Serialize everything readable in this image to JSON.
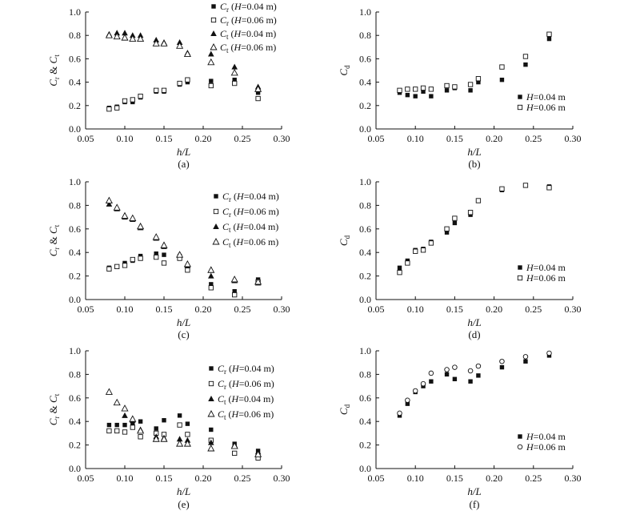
{
  "chart_data": [
    {
      "type": "scatter",
      "panel_label": "(a)",
      "xlabel": "h/L",
      "ylabel": "Cr & Ct",
      "xlim": [
        0.05,
        0.3
      ],
      "ylim": [
        0.0,
        1.0
      ],
      "xticks": [
        "0.05",
        "0.10",
        "0.15",
        "0.20",
        "0.25",
        "0.30"
      ],
      "yticks": [
        "0.0",
        "0.2",
        "0.4",
        "0.6",
        "0.8",
        "1.0"
      ],
      "grid": false,
      "legend_position": "top-right",
      "series": [
        {
          "name": "Cr (H=0.04 m)",
          "marker": "square-filled",
          "x": [
            0.08,
            0.09,
            0.1,
            0.11,
            0.12,
            0.14,
            0.15,
            0.17,
            0.18,
            0.21,
            0.24,
            0.27
          ],
          "y": [
            0.18,
            0.19,
            0.23,
            0.23,
            0.27,
            0.32,
            0.32,
            0.38,
            0.4,
            0.41,
            0.42,
            0.31
          ]
        },
        {
          "name": "Cr (H=0.06 m)",
          "marker": "square-open",
          "x": [
            0.08,
            0.09,
            0.1,
            0.11,
            0.12,
            0.14,
            0.15,
            0.17,
            0.18,
            0.21,
            0.24,
            0.27
          ],
          "y": [
            0.17,
            0.18,
            0.24,
            0.25,
            0.28,
            0.33,
            0.33,
            0.39,
            0.42,
            0.37,
            0.39,
            0.26
          ]
        },
        {
          "name": "Ct (H=0.04 m)",
          "marker": "triangle-filled",
          "x": [
            0.08,
            0.09,
            0.1,
            0.11,
            0.12,
            0.14,
            0.15,
            0.17,
            0.18,
            0.21,
            0.24,
            0.27
          ],
          "y": [
            0.81,
            0.82,
            0.82,
            0.8,
            0.8,
            0.76,
            0.74,
            0.74,
            0.65,
            0.64,
            0.53,
            0.36
          ]
        },
        {
          "name": "Ct (H=0.06 m)",
          "marker": "triangle-open",
          "x": [
            0.08,
            0.09,
            0.1,
            0.11,
            0.12,
            0.14,
            0.15,
            0.17,
            0.18,
            0.21,
            0.24,
            0.27
          ],
          "y": [
            0.8,
            0.79,
            0.78,
            0.77,
            0.77,
            0.73,
            0.73,
            0.71,
            0.64,
            0.57,
            0.48,
            0.34
          ]
        }
      ]
    },
    {
      "type": "scatter",
      "panel_label": "(b)",
      "xlabel": "h/L",
      "ylabel": "Cd",
      "xlim": [
        0.05,
        0.3
      ],
      "ylim": [
        0.0,
        1.0
      ],
      "xticks": [
        "0.05",
        "0.10",
        "0.15",
        "0.20",
        "0.25",
        "0.30"
      ],
      "yticks": [
        "0.0",
        "0.2",
        "0.4",
        "0.6",
        "0.8",
        "1.0"
      ],
      "grid": false,
      "legend_position": "bottom-right",
      "series": [
        {
          "name": "H=0.04 m",
          "marker": "square-filled",
          "x": [
            0.08,
            0.09,
            0.1,
            0.11,
            0.12,
            0.14,
            0.15,
            0.17,
            0.18,
            0.21,
            0.24,
            0.27
          ],
          "y": [
            0.31,
            0.29,
            0.28,
            0.32,
            0.28,
            0.33,
            0.35,
            0.33,
            0.4,
            0.42,
            0.55,
            0.77
          ]
        },
        {
          "name": "H=0.06 m",
          "marker": "square-open",
          "x": [
            0.08,
            0.09,
            0.1,
            0.11,
            0.12,
            0.14,
            0.15,
            0.17,
            0.18,
            0.21,
            0.24,
            0.27
          ],
          "y": [
            0.33,
            0.34,
            0.34,
            0.35,
            0.34,
            0.37,
            0.36,
            0.38,
            0.43,
            0.53,
            0.62,
            0.81
          ]
        }
      ]
    },
    {
      "type": "scatter",
      "panel_label": "(c)",
      "xlabel": "h/L",
      "ylabel": "Cr & Ct",
      "xlim": [
        0.05,
        0.3
      ],
      "ylim": [
        0.0,
        1.0
      ],
      "xticks": [
        "0.05",
        "0.10",
        "0.15",
        "0.20",
        "0.25",
        "0.30"
      ],
      "yticks": [
        "0.0",
        "0.2",
        "0.4",
        "0.6",
        "0.8",
        "1.0"
      ],
      "grid": false,
      "legend_position": "top-right",
      "series": [
        {
          "name": "Cr (H=0.04 m)",
          "marker": "square-filled",
          "x": [
            0.08,
            0.09,
            0.1,
            0.11,
            0.12,
            0.14,
            0.15,
            0.17,
            0.18,
            0.21,
            0.24,
            0.27
          ],
          "y": [
            0.27,
            0.28,
            0.31,
            0.33,
            0.37,
            0.39,
            0.38,
            0.37,
            0.26,
            0.13,
            0.07,
            0.17
          ]
        },
        {
          "name": "Cr (H=0.06 m)",
          "marker": "square-open",
          "x": [
            0.08,
            0.09,
            0.1,
            0.11,
            0.12,
            0.14,
            0.15,
            0.17,
            0.18,
            0.21,
            0.24,
            0.27
          ],
          "y": [
            0.26,
            0.28,
            0.29,
            0.34,
            0.35,
            0.36,
            0.31,
            0.35,
            0.25,
            0.1,
            0.04,
            0.15
          ]
        },
        {
          "name": "Ct (H=0.04 m)",
          "marker": "triangle-filled",
          "x": [
            0.08,
            0.09,
            0.1,
            0.11,
            0.12,
            0.14,
            0.15,
            0.17,
            0.18,
            0.21,
            0.24,
            0.27
          ],
          "y": [
            0.81,
            0.77,
            0.7,
            0.68,
            0.61,
            0.52,
            0.45,
            0.38,
            0.29,
            0.2,
            0.16,
            0.14
          ]
        },
        {
          "name": "Ct (H=0.06 m)",
          "marker": "triangle-open",
          "x": [
            0.08,
            0.09,
            0.1,
            0.11,
            0.12,
            0.14,
            0.15,
            0.17,
            0.18,
            0.21,
            0.24,
            0.27
          ],
          "y": [
            0.84,
            0.78,
            0.71,
            0.69,
            0.62,
            0.53,
            0.46,
            0.38,
            0.3,
            0.25,
            0.17,
            0.15
          ]
        }
      ]
    },
    {
      "type": "scatter",
      "panel_label": "(d)",
      "xlabel": "h/L",
      "ylabel": "Cd",
      "xlim": [
        0.05,
        0.3
      ],
      "ylim": [
        0.0,
        1.0
      ],
      "xticks": [
        "0.05",
        "0.10",
        "0.15",
        "0.20",
        "0.25",
        "0.30"
      ],
      "yticks": [
        "0.0",
        "0.2",
        "0.4",
        "0.6",
        "0.8",
        "1.0"
      ],
      "grid": false,
      "legend_position": "bottom-right",
      "series": [
        {
          "name": "H=0.04 m",
          "marker": "square-filled",
          "x": [
            0.08,
            0.09,
            0.1,
            0.11,
            0.12,
            0.14,
            0.15,
            0.17,
            0.18,
            0.21,
            0.24,
            0.27
          ],
          "y": [
            0.27,
            0.33,
            0.42,
            0.43,
            0.49,
            0.57,
            0.65,
            0.72,
            0.84,
            0.93,
            0.97,
            0.96
          ]
        },
        {
          "name": "H=0.06 m",
          "marker": "square-open",
          "x": [
            0.08,
            0.09,
            0.1,
            0.11,
            0.12,
            0.14,
            0.15,
            0.17,
            0.18,
            0.21,
            0.24,
            0.27
          ],
          "y": [
            0.23,
            0.31,
            0.41,
            0.42,
            0.48,
            0.6,
            0.69,
            0.74,
            0.84,
            0.94,
            0.97,
            0.95
          ]
        }
      ]
    },
    {
      "type": "scatter",
      "panel_label": "(e)",
      "xlabel": "h/L",
      "ylabel": "Cr & Ct",
      "xlim": [
        0.05,
        0.3
      ],
      "ylim": [
        0.0,
        1.0
      ],
      "xticks": [
        "0.05",
        "0.10",
        "0.15",
        "0.20",
        "0.25",
        "0.30"
      ],
      "yticks": [
        "0.0",
        "0.2",
        "0.4",
        "0.6",
        "0.8",
        "1.0"
      ],
      "grid": false,
      "legend_position": "top-right",
      "series": [
        {
          "name": "Cr (H=0.04 m)",
          "marker": "square-filled",
          "x": [
            0.08,
            0.09,
            0.1,
            0.11,
            0.12,
            0.14,
            0.15,
            0.17,
            0.18,
            0.21,
            0.24,
            0.27
          ],
          "y": [
            0.37,
            0.37,
            0.37,
            0.38,
            0.4,
            0.34,
            0.41,
            0.45,
            0.38,
            0.33,
            0.21,
            0.15
          ]
        },
        {
          "name": "Cr (H=0.06 m)",
          "marker": "square-open",
          "x": [
            0.08,
            0.09,
            0.1,
            0.11,
            0.12,
            0.14,
            0.15,
            0.17,
            0.18,
            0.21,
            0.24,
            0.27
          ],
          "y": [
            0.32,
            0.32,
            0.31,
            0.35,
            0.27,
            0.3,
            0.29,
            0.37,
            0.29,
            0.24,
            0.13,
            0.09
          ]
        },
        {
          "name": "Ct (H=0.04 m)",
          "marker": "triangle-filled",
          "x": [
            0.08,
            0.09,
            0.1,
            0.11,
            0.12,
            0.14,
            0.15,
            0.17,
            0.18,
            0.21,
            0.24,
            0.27
          ],
          "y": [
            0.65,
            0.56,
            0.45,
            0.41,
            0.33,
            0.27,
            0.26,
            0.25,
            0.24,
            0.22,
            0.2,
            0.14
          ]
        },
        {
          "name": "Ct (H=0.06 m)",
          "marker": "triangle-open",
          "x": [
            0.08,
            0.09,
            0.1,
            0.11,
            0.12,
            0.14,
            0.15,
            0.17,
            0.18,
            0.21,
            0.24,
            0.27
          ],
          "y": [
            0.65,
            0.56,
            0.51,
            0.42,
            0.32,
            0.25,
            0.25,
            0.21,
            0.21,
            0.17,
            0.19,
            0.12
          ]
        }
      ]
    },
    {
      "type": "scatter",
      "panel_label": "(f)",
      "xlabel": "h/L",
      "ylabel": "Cd",
      "xlim": [
        0.05,
        0.3
      ],
      "ylim": [
        0.0,
        1.0
      ],
      "xticks": [
        "0.05",
        "0.10",
        "0.15",
        "0.20",
        "0.25",
        "0.30"
      ],
      "yticks": [
        "0.0",
        "0.2",
        "0.4",
        "0.6",
        "0.8",
        "1.0"
      ],
      "grid": false,
      "legend_position": "bottom-right",
      "series": [
        {
          "name": "H=0.04 m",
          "marker": "square-filled",
          "x": [
            0.08,
            0.09,
            0.1,
            0.11,
            0.12,
            0.14,
            0.15,
            0.17,
            0.18,
            0.21,
            0.24,
            0.27
          ],
          "y": [
            0.45,
            0.55,
            0.65,
            0.7,
            0.74,
            0.8,
            0.76,
            0.74,
            0.79,
            0.86,
            0.91,
            0.96
          ]
        },
        {
          "name": "H=0.06 m",
          "marker": "circle-open",
          "x": [
            0.08,
            0.09,
            0.1,
            0.11,
            0.12,
            0.14,
            0.15,
            0.17,
            0.18,
            0.21,
            0.24,
            0.27
          ],
          "y": [
            0.47,
            0.58,
            0.66,
            0.72,
            0.81,
            0.84,
            0.86,
            0.83,
            0.87,
            0.91,
            0.95,
            0.98
          ]
        }
      ]
    }
  ]
}
